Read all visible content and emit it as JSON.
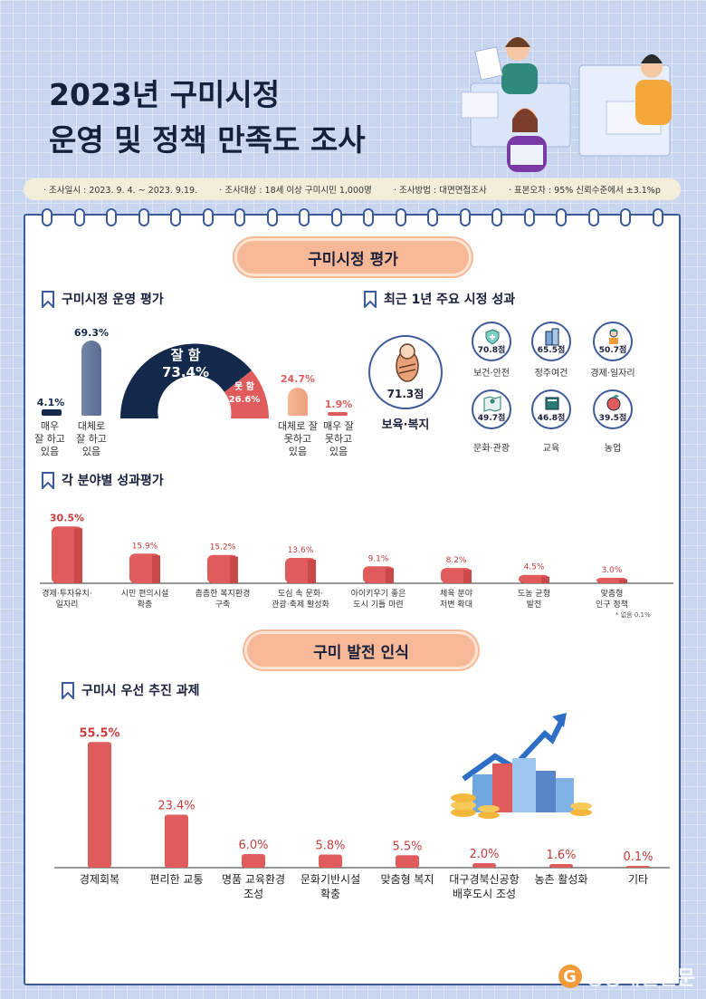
{
  "title": {
    "line1": "2023년 구미시정",
    "line2": "운영 및 정책 만족도 조사"
  },
  "survey": {
    "date": "· 조사일시 : 2023. 9. 4. ~ 2023. 9.19.",
    "target": "· 조사대상 : 18세 이상 구미시민 1,000명",
    "method": "· 조사방법 : 대면면접조사",
    "error": "· 표본오차 : 95% 신뢰수준에서 ±3.1%p"
  },
  "section1": {
    "title": "구미시정 평가"
  },
  "section2": {
    "title": "구미 발전 인식"
  },
  "operation": {
    "title": "구미시정 운영 평가",
    "good_label": "잘 함",
    "good_value": "73.4%",
    "bad_label": "못 함",
    "bad_value": "26.6%",
    "bars": [
      {
        "label": "매우\n잘 하고\n있음",
        "value": 4.1,
        "text": "4.1%"
      },
      {
        "label": "대체로\n잘 하고\n있음",
        "value": 69.3,
        "text": "69.3%"
      },
      {
        "label": "대체로 잘\n못하고\n있음",
        "value": 24.7,
        "text": "24.7%"
      },
      {
        "label": "매우 잘\n못하고\n있음",
        "value": 1.9,
        "text": "1.9%"
      }
    ]
  },
  "achievements": {
    "title": "최근 1년 주요 시정 성과",
    "top": {
      "label": "보육·복지",
      "value": "71.3점"
    },
    "items": [
      {
        "label": "보건·안전",
        "value": "70.8점",
        "icon": "health-icon"
      },
      {
        "label": "정주여건",
        "value": "65.5점",
        "icon": "building-icon"
      },
      {
        "label": "경제·일자리",
        "value": "50.7점",
        "icon": "worker-icon"
      },
      {
        "label": "문화·관광",
        "value": "49.7점",
        "icon": "map-icon"
      },
      {
        "label": "교육",
        "value": "46.8점",
        "icon": "book-icon"
      },
      {
        "label": "농업",
        "value": "39.5점",
        "icon": "apple-icon"
      }
    ]
  },
  "sector": {
    "title": "각 분야별 성과평가",
    "note": "* 없음 0.1%"
  },
  "priority": {
    "title": "구미시 우선 추진 과제"
  },
  "logo": "경상매일신문",
  "colors": {
    "navy": "#13294b",
    "red": "#e05c5c",
    "peach": "#f6b896",
    "frame": "#3d5a9a"
  },
  "chart_data": [
    {
      "type": "bar",
      "title": "각 분야별 성과평가",
      "categories": [
        "경제·투자유치·\n일자리",
        "시민 편의시설\n확충",
        "촘촘한 복지환경\n구축",
        "도심 속 문화·\n관광·축제 활성화",
        "아이키우기 좋은\n도시 기틀 마련",
        "체육 분야\n저변 확대",
        "도농 균형\n발전",
        "맞춤형\n인구 정책"
      ],
      "values": [
        30.5,
        15.9,
        15.2,
        13.6,
        9.1,
        8.2,
        4.5,
        3.0
      ],
      "value_labels": [
        "30.5%",
        "15.9%",
        "15.2%",
        "13.6%",
        "9.1%",
        "8.2%",
        "4.5%",
        "3.0%"
      ],
      "ylim": [
        0,
        35
      ]
    },
    {
      "type": "bar",
      "title": "구미시 우선 추진 과제",
      "categories": [
        "경제회복",
        "편리한 교통",
        "명품 교육환경\n조성",
        "문화기반시설\n확충",
        "맞춤형 복지",
        "대구경북신공항\n배후도시 조성",
        "농촌 활성화",
        "기타"
      ],
      "values": [
        55.5,
        23.4,
        6.0,
        5.8,
        5.5,
        2.0,
        1.6,
        0.1
      ],
      "value_labels": [
        "55.5%",
        "23.4%",
        "6.0%",
        "5.8%",
        "5.5%",
        "2.0%",
        "1.6%",
        "0.1%"
      ],
      "ylim": [
        0,
        60
      ]
    }
  ]
}
